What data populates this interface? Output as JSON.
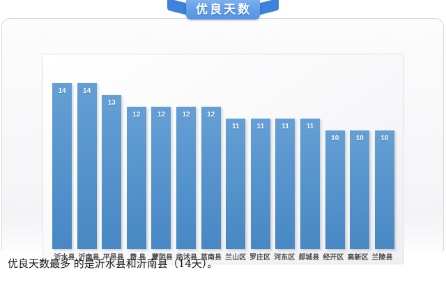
{
  "header": {
    "badge_label": "优良天数"
  },
  "chart_data": {
    "type": "bar",
    "title": "优良天数",
    "categories": [
      "沂水县",
      "沂南县",
      "平邑县",
      "费 县",
      "蒙阴县",
      "临沭县",
      "莒南县",
      "兰山区",
      "罗庄区",
      "河东区",
      "郯城县",
      "经开区",
      "高新区",
      "兰陵县"
    ],
    "values": [
      14,
      14,
      13,
      12,
      12,
      12,
      12,
      11,
      11,
      11,
      11,
      10,
      10,
      10
    ],
    "xlabel": "",
    "ylabel": "",
    "ylim": [
      0,
      16
    ],
    "grid": false,
    "legend": "none",
    "value_labels_shown": true,
    "bar_color": "#4b8fce"
  },
  "colors": {
    "bar": "#4b8fce",
    "badge_body": "#619ee8",
    "badge_fold": "#3d83dc",
    "panel_border": "#e2e2e7"
  },
  "footer": {
    "caption": "优良天数最多 的是沂水县和沂南县（14天）。"
  }
}
